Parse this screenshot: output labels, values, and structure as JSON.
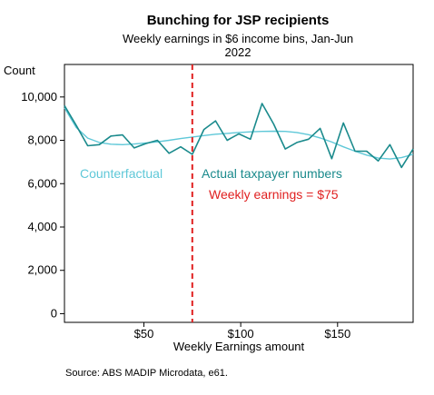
{
  "chart_data": {
    "type": "line",
    "title": "Bunching for JSP recipients",
    "subtitle_line1": "Weekly earnings in $6 income bins, Jan-Jun",
    "subtitle_line2": "2022",
    "xlabel": "Weekly Earnings amount",
    "ylabel": "Count",
    "xlim": [
      9,
      189
    ],
    "ylim": [
      -400,
      11500
    ],
    "x_ticks": [
      {
        "value": 50,
        "label": "$50"
      },
      {
        "value": 100,
        "label": "$100"
      },
      {
        "value": 150,
        "label": "$150"
      }
    ],
    "y_ticks": [
      {
        "value": 0,
        "label": "0"
      },
      {
        "value": 2000,
        "label": "2,000"
      },
      {
        "value": 4000,
        "label": "4,000"
      },
      {
        "value": 6000,
        "label": "6,000"
      },
      {
        "value": 8000,
        "label": "8,000"
      },
      {
        "value": 10000,
        "label": "10,000"
      }
    ],
    "grid": false,
    "series": [
      {
        "name": "Actual taxpayer numbers",
        "color": "#1a8a8c",
        "x": [
          9,
          15,
          21,
          27,
          33,
          39,
          45,
          51,
          57,
          63,
          69,
          75,
          81,
          87,
          93,
          99,
          105,
          111,
          117,
          123,
          129,
          135,
          141,
          147,
          153,
          159,
          165,
          171,
          177,
          183,
          189
        ],
        "values": [
          9600,
          8700,
          7750,
          7800,
          8200,
          8250,
          7650,
          7850,
          8000,
          7400,
          7700,
          7350,
          8500,
          8900,
          8000,
          8300,
          8050,
          9700,
          8750,
          7600,
          7900,
          8050,
          8550,
          7150,
          8800,
          7500,
          7500,
          7050,
          7800,
          6750,
          7600
        ]
      },
      {
        "name": "Counterfactual",
        "color": "#5fc8d8",
        "x": [
          9,
          15,
          21,
          27,
          33,
          39,
          45,
          51,
          57,
          63,
          69,
          75,
          81,
          87,
          93,
          99,
          105,
          111,
          117,
          123,
          129,
          135,
          141,
          147,
          153,
          159,
          165,
          171,
          177,
          183,
          189
        ],
        "values": [
          9500,
          8600,
          8100,
          7900,
          7820,
          7800,
          7830,
          7880,
          7930,
          8000,
          8080,
          8150,
          8220,
          8280,
          8320,
          8360,
          8390,
          8410,
          8420,
          8410,
          8360,
          8260,
          8110,
          7920,
          7700,
          7500,
          7320,
          7180,
          7140,
          7200,
          7350
        ]
      }
    ],
    "threshold": {
      "value": 75,
      "label": "Weekly earnings = $75",
      "color": "#e02020"
    },
    "annotations": {
      "counterfactual": "Counterfactual",
      "actual": "Actual taxpayer numbers"
    },
    "source": "Source: ABS MADIP Microdata, e61."
  }
}
